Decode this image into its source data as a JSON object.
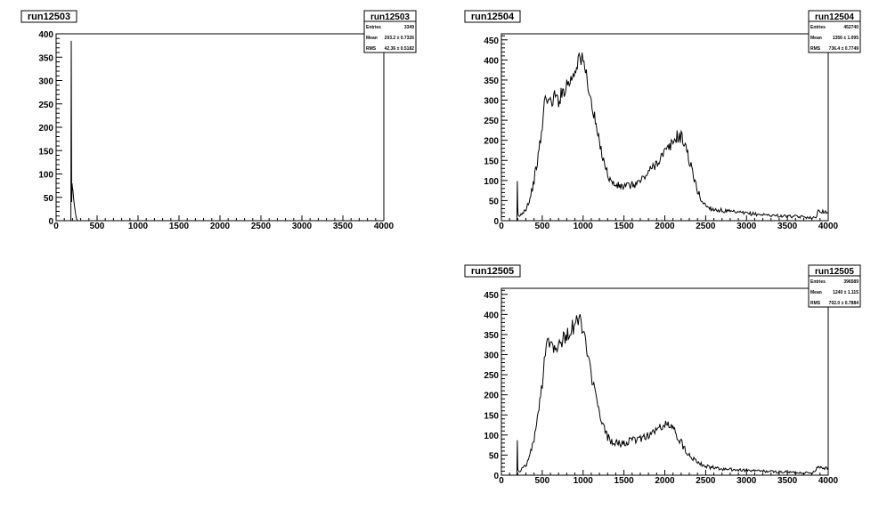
{
  "chart_data": [
    {
      "type": "histogram",
      "title": "run12503",
      "xlim": [
        0,
        4000
      ],
      "ylim": [
        0,
        400
      ],
      "xticks": [
        0,
        500,
        1000,
        1500,
        2000,
        2500,
        3000,
        3500,
        4000
      ],
      "yticks": [
        0,
        50,
        100,
        150,
        200,
        250,
        300,
        350,
        400
      ],
      "grid": false,
      "stats": {
        "title": "run12503",
        "rows": [
          {
            "label": "Entries",
            "value": "3349"
          },
          {
            "label": "Mean",
            "value": "203.2 ± 0.7326"
          },
          {
            "label": "RMS",
            "value": "42.36 ± 0.5182"
          }
        ]
      },
      "x": [
        180,
        185,
        190,
        195,
        200,
        205,
        210,
        215,
        220,
        225,
        230,
        235,
        240,
        245,
        250,
        255,
        260
      ],
      "y": [
        0,
        385,
        40,
        80,
        70,
        65,
        55,
        45,
        38,
        30,
        24,
        18,
        12,
        8,
        4,
        2,
        0
      ]
    },
    {
      "type": "histogram",
      "title": "run12504",
      "xlim": [
        0,
        4000
      ],
      "ylim": [
        0,
        465
      ],
      "xticks": [
        0,
        500,
        1000,
        1500,
        2000,
        2500,
        3000,
        3500,
        4000
      ],
      "yticks": [
        0,
        50,
        100,
        150,
        200,
        250,
        300,
        350,
        400,
        450
      ],
      "grid": false,
      "stats": {
        "title": "run12504",
        "rows": [
          {
            "label": "Entries",
            "value": "452740"
          },
          {
            "label": "Mean",
            "value": "1356 ± 1.095"
          },
          {
            "label": "RMS",
            "value": "736.4 ± 0.7749"
          }
        ]
      },
      "x": [
        185,
        190,
        195,
        200,
        205,
        220,
        250,
        300,
        350,
        400,
        450,
        500,
        525,
        550,
        575,
        600,
        650,
        700,
        750,
        800,
        850,
        900,
        950,
        975,
        1000,
        1050,
        1100,
        1150,
        1200,
        1250,
        1300,
        1350,
        1400,
        1450,
        1500,
        1600,
        1700,
        1800,
        1900,
        2000,
        2050,
        2100,
        2150,
        2200,
        2250,
        2300,
        2350,
        2400,
        2450,
        2500,
        2550,
        2600,
        2700,
        2800,
        2900,
        3000,
        3200,
        3400,
        3600,
        3800,
        3850,
        3880,
        3900,
        4000
      ],
      "y": [
        0,
        0,
        95,
        30,
        15,
        10,
        18,
        30,
        55,
        100,
        160,
        230,
        290,
        315,
        300,
        290,
        310,
        300,
        320,
        340,
        350,
        375,
        410,
        400,
        395,
        355,
        290,
        245,
        190,
        155,
        115,
        95,
        88,
        85,
        85,
        88,
        98,
        120,
        145,
        170,
        180,
        195,
        210,
        208,
        190,
        150,
        110,
        75,
        50,
        38,
        32,
        28,
        25,
        22,
        20,
        18,
        15,
        12,
        10,
        8,
        6,
        30,
        25,
        20
      ]
    },
    {
      "type": "histogram",
      "title": "run12505",
      "xlim": [
        0,
        4000
      ],
      "ylim": [
        0,
        465
      ],
      "xticks": [
        0,
        500,
        1000,
        1500,
        2000,
        2500,
        3000,
        3500,
        4000
      ],
      "yticks": [
        0,
        50,
        100,
        150,
        200,
        250,
        300,
        350,
        400,
        450
      ],
      "grid": false,
      "stats": {
        "title": "run12505",
        "rows": [
          {
            "label": "Entries",
            "value": "396589"
          },
          {
            "label": "Mean",
            "value": "1240 ± 1.115"
          },
          {
            "label": "RMS",
            "value": "702.0 ± 0.7884"
          }
        ]
      },
      "x": [
        185,
        190,
        195,
        200,
        205,
        220,
        250,
        300,
        350,
        400,
        450,
        500,
        525,
        550,
        575,
        600,
        650,
        700,
        750,
        800,
        850,
        900,
        950,
        975,
        1000,
        1050,
        1100,
        1150,
        1200,
        1250,
        1300,
        1350,
        1400,
        1450,
        1500,
        1600,
        1700,
        1800,
        1900,
        1950,
        2000,
        2050,
        2100,
        2150,
        2200,
        2300,
        2400,
        2500,
        2600,
        2700,
        2800,
        3000,
        3200,
        3400,
        3600,
        3800,
        3850,
        3880,
        3900,
        4000
      ],
      "y": [
        0,
        0,
        95,
        20,
        10,
        8,
        15,
        25,
        50,
        90,
        150,
        230,
        290,
        330,
        340,
        330,
        320,
        330,
        335,
        350,
        360,
        375,
        390,
        380,
        365,
        300,
        250,
        200,
        150,
        120,
        95,
        85,
        80,
        78,
        80,
        85,
        92,
        100,
        112,
        120,
        125,
        125,
        115,
        100,
        80,
        50,
        35,
        22,
        18,
        15,
        14,
        12,
        10,
        8,
        7,
        5,
        15,
        22,
        20,
        18
      ]
    }
  ]
}
